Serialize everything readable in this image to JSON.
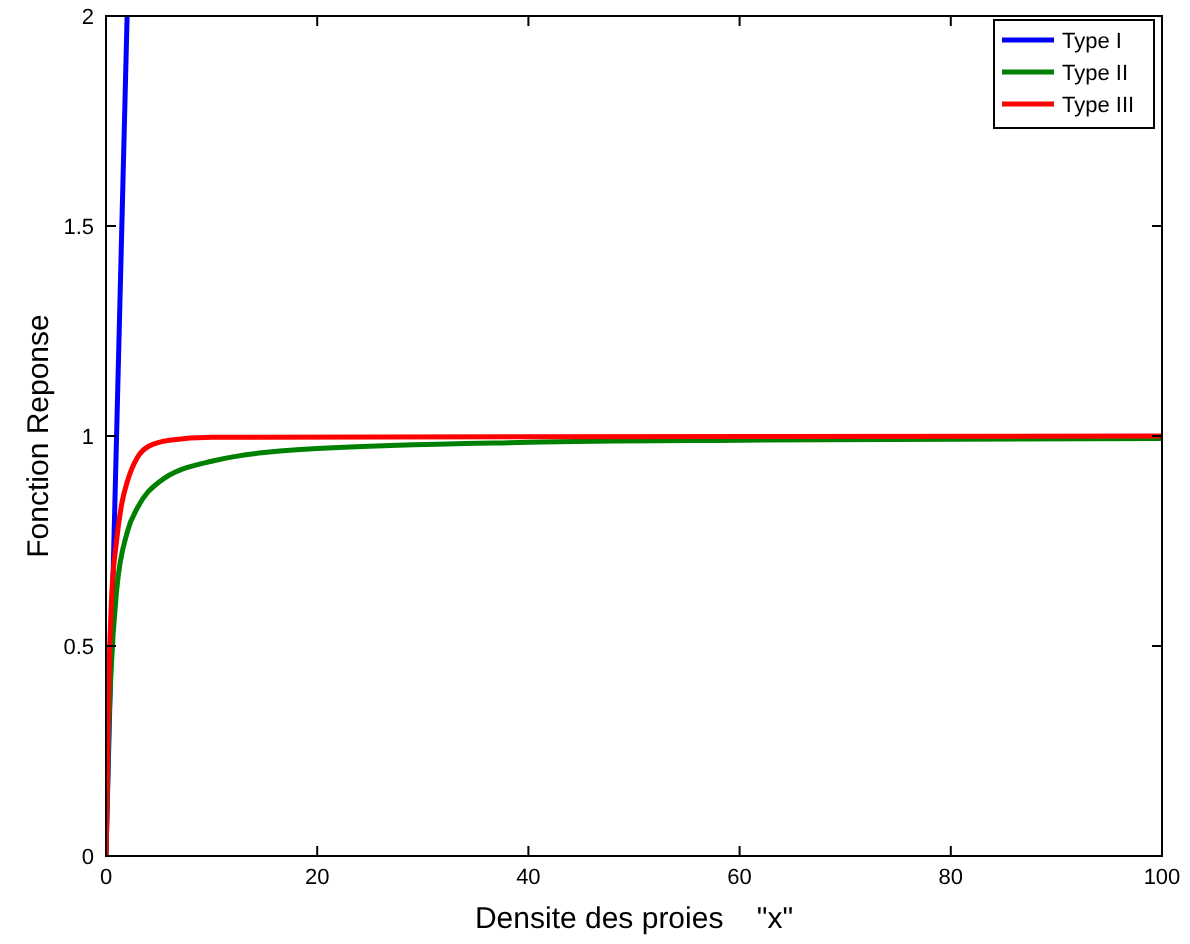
{
  "chart_data": {
    "type": "line",
    "xlabel": "Densite des proies    \"x\"",
    "ylabel": "Fonction Reponse",
    "xlim": [
      0,
      100
    ],
    "ylim": [
      0,
      2
    ],
    "xticks": [
      0,
      20,
      40,
      60,
      80,
      100
    ],
    "yticks": [
      0,
      0.5,
      1,
      1.5,
      2
    ],
    "legend": "top right",
    "grid": false,
    "marker": "none",
    "line_style": "solid",
    "series": [
      {
        "name": "Type I",
        "color": "#0000ff",
        "x": [
          0,
          2
        ],
        "values": [
          0,
          2
        ]
      },
      {
        "name": "Type II",
        "color": "#008000",
        "x": [
          0,
          0.25,
          0.5,
          1,
          2,
          3,
          5,
          10,
          20,
          40,
          60,
          100
        ],
        "values": [
          0,
          0.29,
          0.45,
          0.63,
          0.77,
          0.83,
          0.89,
          0.94,
          0.97,
          0.985,
          0.99,
          0.994
        ]
      },
      {
        "name": "Type III",
        "color": "#ff0000",
        "x": [
          0,
          0.25,
          0.5,
          1,
          1.5,
          2,
          3,
          4,
          6,
          10,
          100
        ],
        "values": [
          0,
          0.4,
          0.6,
          0.75,
          0.84,
          0.89,
          0.95,
          0.975,
          0.99,
          0.997,
          1
        ]
      }
    ]
  }
}
